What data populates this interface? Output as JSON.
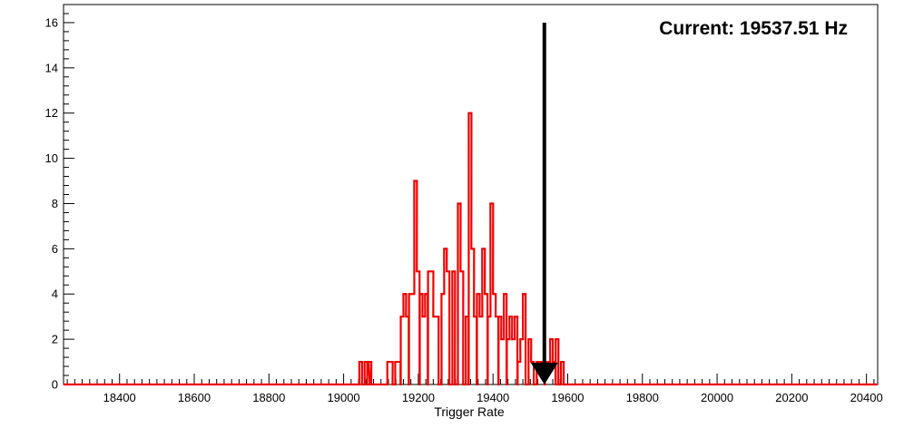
{
  "chart_data": {
    "type": "histogram-step",
    "xlabel": "Trigger Rate",
    "ylabel": "",
    "xlim": [
      18250,
      20430
    ],
    "ylim": [
      0,
      16.8
    ],
    "x_ticks": [
      18400,
      18600,
      18800,
      19000,
      19200,
      19400,
      19600,
      19800,
      20000,
      20200,
      20400
    ],
    "y_ticks": [
      0,
      2,
      4,
      6,
      8,
      10,
      12,
      14,
      16
    ],
    "bin_width": 7.3,
    "series": [
      {
        "color": "#ee0000",
        "bins": [
          [
            19042,
            1
          ],
          [
            19049,
            0
          ],
          [
            19056,
            1
          ],
          [
            19063,
            0
          ],
          [
            19067,
            1
          ],
          [
            19074,
            0
          ],
          [
            19117,
            1
          ],
          [
            19124,
            1
          ],
          [
            19131,
            0
          ],
          [
            19138,
            1
          ],
          [
            19145,
            1
          ],
          [
            19153,
            3
          ],
          [
            19160,
            4
          ],
          [
            19167,
            3
          ],
          [
            19175,
            4
          ],
          [
            19182,
            4
          ],
          [
            19189,
            9
          ],
          [
            19196,
            5
          ],
          [
            19204,
            4
          ],
          [
            19211,
            3
          ],
          [
            19218,
            4
          ],
          [
            19226,
            5
          ],
          [
            19233,
            5
          ],
          [
            19240,
            3
          ],
          [
            19247,
            3
          ],
          [
            19255,
            0
          ],
          [
            19262,
            4
          ],
          [
            19269,
            6
          ],
          [
            19276,
            5
          ],
          [
            19284,
            0
          ],
          [
            19291,
            5
          ],
          [
            19298,
            0
          ],
          [
            19306,
            8
          ],
          [
            19313,
            5
          ],
          [
            19320,
            0
          ],
          [
            19327,
            3
          ],
          [
            19335,
            12
          ],
          [
            19342,
            6
          ],
          [
            19349,
            3
          ],
          [
            19357,
            4
          ],
          [
            19364,
            3
          ],
          [
            19371,
            6
          ],
          [
            19378,
            4
          ],
          [
            19386,
            3
          ],
          [
            19393,
            8
          ],
          [
            19400,
            4
          ],
          [
            19407,
            3
          ],
          [
            19415,
            3
          ],
          [
            19422,
            2
          ],
          [
            19429,
            4
          ],
          [
            19437,
            2
          ],
          [
            19444,
            3
          ],
          [
            19451,
            2
          ],
          [
            19458,
            3
          ],
          [
            19466,
            1
          ],
          [
            19473,
            2
          ],
          [
            19480,
            4
          ],
          [
            19488,
            0
          ],
          [
            19495,
            2
          ],
          [
            19502,
            1
          ],
          [
            19509,
            0
          ],
          [
            19517,
            1
          ],
          [
            19524,
            1
          ],
          [
            19531,
            1
          ],
          [
            19539,
            1
          ],
          [
            19546,
            1
          ],
          [
            19553,
            2
          ],
          [
            19560,
            1
          ],
          [
            19568,
            2
          ],
          [
            19575,
            0
          ],
          [
            19582,
            1
          ],
          [
            19590,
            0
          ]
        ]
      }
    ],
    "marker": {
      "x": 19537.51,
      "y_top": 16,
      "type": "down-arrow"
    },
    "annotation": "Current: 19537.51 Hz",
    "grid": false,
    "legend": "none"
  }
}
